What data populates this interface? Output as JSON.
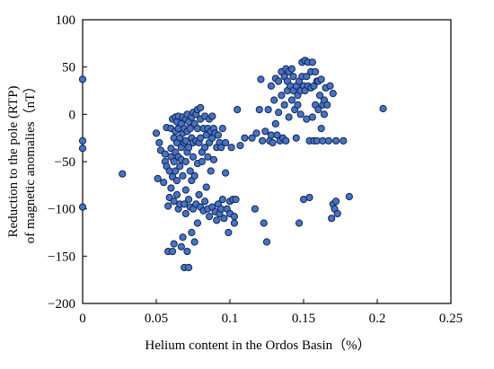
{
  "chart_data": {
    "type": "scatter",
    "xlabel": "Helium content in the Ordos Basin（%）",
    "ylabel_line1": "Reduction to the pole (RTP)",
    "ylabel_line2": "of magnetic anomalies（nT）",
    "xlim": [
      0,
      0.25
    ],
    "ylim": [
      -200,
      100
    ],
    "xticks": [
      0,
      0.05,
      0.1,
      0.15,
      0.2,
      0.25
    ],
    "xtick_labels": [
      "0",
      "0.05",
      "0.1",
      "0.15",
      "0.2",
      "0.25"
    ],
    "yticks": [
      100,
      50,
      0,
      -50,
      -100,
      -150,
      -200
    ],
    "ytick_labels": [
      "100",
      "50",
      "0",
      "−50",
      "−100",
      "−150",
      "−200"
    ],
    "grid": false,
    "marker_color": "#4a72c0",
    "marker_edge": "#0d2658",
    "points": [
      [
        0,
        37
      ],
      [
        0,
        -28
      ],
      [
        0,
        -36
      ],
      [
        0,
        -98
      ],
      [
        0.027,
        -63
      ],
      [
        0.05,
        -20
      ],
      [
        0.051,
        -68
      ],
      [
        0.052,
        -30
      ],
      [
        0.053,
        -38
      ],
      [
        0.055,
        -72
      ],
      [
        0.056,
        -42
      ],
      [
        0.056,
        -50
      ],
      [
        0.057,
        -14
      ],
      [
        0.057,
        -55
      ],
      [
        0.058,
        -97
      ],
      [
        0.058,
        -145
      ],
      [
        0.059,
        -60
      ],
      [
        0.059,
        -88
      ],
      [
        0.06,
        -15
      ],
      [
        0.06,
        -36
      ],
      [
        0.06,
        -45
      ],
      [
        0.06,
        -78
      ],
      [
        0.061,
        -5
      ],
      [
        0.061,
        -66
      ],
      [
        0.061,
        -145
      ],
      [
        0.062,
        -25
      ],
      [
        0.062,
        -50
      ],
      [
        0.062,
        -92
      ],
      [
        0.062,
        -137
      ],
      [
        0.063,
        -3
      ],
      [
        0.063,
        -18
      ],
      [
        0.063,
        -40
      ],
      [
        0.063,
        -60
      ],
      [
        0.064,
        -8
      ],
      [
        0.064,
        -30
      ],
      [
        0.064,
        -70
      ],
      [
        0.064,
        -85
      ],
      [
        0.065,
        -2
      ],
      [
        0.065,
        -15
      ],
      [
        0.065,
        -45
      ],
      [
        0.065,
        -100
      ],
      [
        0.066,
        -25
      ],
      [
        0.066,
        -55
      ],
      [
        0.066,
        -95
      ],
      [
        0.067,
        -10
      ],
      [
        0.067,
        -35
      ],
      [
        0.067,
        -48
      ],
      [
        0.067,
        -140
      ],
      [
        0.068,
        -3
      ],
      [
        0.068,
        -20
      ],
      [
        0.068,
        -65
      ],
      [
        0.068,
        -130
      ],
      [
        0.069,
        -15
      ],
      [
        0.069,
        -30
      ],
      [
        0.069,
        -95
      ],
      [
        0.069,
        -162
      ],
      [
        0.07,
        -5
      ],
      [
        0.07,
        -28
      ],
      [
        0.07,
        -50
      ],
      [
        0.07,
        -80
      ],
      [
        0.07,
        -105
      ],
      [
        0.071,
        0
      ],
      [
        0.071,
        -18
      ],
      [
        0.071,
        -40
      ],
      [
        0.071,
        -145
      ],
      [
        0.072,
        -8
      ],
      [
        0.072,
        -35
      ],
      [
        0.072,
        -90
      ],
      [
        0.072,
        -162
      ],
      [
        0.073,
        -15
      ],
      [
        0.073,
        -60
      ],
      [
        0.073,
        -98
      ],
      [
        0.074,
        -3
      ],
      [
        0.074,
        -25
      ],
      [
        0.074,
        -70
      ],
      [
        0.074,
        -125
      ],
      [
        0.075,
        2
      ],
      [
        0.075,
        -30
      ],
      [
        0.075,
        -45
      ],
      [
        0.075,
        -100
      ],
      [
        0.076,
        -10
      ],
      [
        0.076,
        -65
      ],
      [
        0.076,
        -135
      ],
      [
        0.077,
        0
      ],
      [
        0.077,
        -28
      ],
      [
        0.077,
        -95
      ],
      [
        0.078,
        5
      ],
      [
        0.078,
        -15
      ],
      [
        0.078,
        -52
      ],
      [
        0.078,
        -115
      ],
      [
        0.079,
        -30
      ],
      [
        0.079,
        -85
      ],
      [
        0.08,
        7
      ],
      [
        0.08,
        -5
      ],
      [
        0.08,
        -25
      ],
      [
        0.08,
        -98
      ],
      [
        0.081,
        -40
      ],
      [
        0.081,
        -50
      ],
      [
        0.082,
        -15
      ],
      [
        0.082,
        -102
      ],
      [
        0.083,
        -2
      ],
      [
        0.083,
        -35
      ],
      [
        0.083,
        -92
      ],
      [
        0.084,
        -22
      ],
      [
        0.084,
        -77
      ],
      [
        0.085,
        -15
      ],
      [
        0.085,
        -45
      ],
      [
        0.085,
        -100
      ],
      [
        0.086,
        -5
      ],
      [
        0.086,
        -30
      ],
      [
        0.086,
        -108
      ],
      [
        0.087,
        -18
      ],
      [
        0.087,
        -60
      ],
      [
        0.088,
        -2
      ],
      [
        0.088,
        -25
      ],
      [
        0.088,
        -98
      ],
      [
        0.089,
        -15
      ],
      [
        0.089,
        -48
      ],
      [
        0.09,
        -20
      ],
      [
        0.09,
        -103
      ],
      [
        0.091,
        -35
      ],
      [
        0.091,
        -112
      ],
      [
        0.092,
        -22
      ],
      [
        0.092,
        -95
      ],
      [
        0.093,
        -30
      ],
      [
        0.093,
        -105
      ],
      [
        0.094,
        -35
      ],
      [
        0.094,
        -100
      ],
      [
        0.095,
        -15
      ],
      [
        0.095,
        -90
      ],
      [
        0.096,
        -110
      ],
      [
        0.097,
        -30
      ],
      [
        0.097,
        -62
      ],
      [
        0.098,
        -100
      ],
      [
        0.099,
        -125
      ],
      [
        0.1,
        -92
      ],
      [
        0.1,
        -105
      ],
      [
        0.101,
        -35
      ],
      [
        0.102,
        -90
      ],
      [
        0.103,
        -108
      ],
      [
        0.103,
        -115
      ],
      [
        0.104,
        -90
      ],
      [
        0.105,
        5
      ],
      [
        0.107,
        -33
      ],
      [
        0.11,
        -25
      ],
      [
        0.115,
        -25
      ],
      [
        0.117,
        -100
      ],
      [
        0.118,
        -20
      ],
      [
        0.12,
        5
      ],
      [
        0.121,
        37
      ],
      [
        0.122,
        -28
      ],
      [
        0.123,
        -115
      ],
      [
        0.124,
        -18
      ],
      [
        0.125,
        -135
      ],
      [
        0.126,
        5
      ],
      [
        0.127,
        -28
      ],
      [
        0.128,
        30
      ],
      [
        0.128,
        -22
      ],
      [
        0.129,
        -30
      ],
      [
        0.13,
        15
      ],
      [
        0.131,
        38
      ],
      [
        0.131,
        -10
      ],
      [
        0.132,
        -22
      ],
      [
        0.133,
        35
      ],
      [
        0.133,
        2
      ],
      [
        0.134,
        -28
      ],
      [
        0.135,
        45
      ],
      [
        0.135,
        20
      ],
      [
        0.136,
        -25
      ],
      [
        0.137,
        40
      ],
      [
        0.137,
        10
      ],
      [
        0.138,
        48
      ],
      [
        0.138,
        -28
      ],
      [
        0.139,
        35
      ],
      [
        0.139,
        25
      ],
      [
        0.14,
        45
      ],
      [
        0.14,
        -3
      ],
      [
        0.141,
        30
      ],
      [
        0.142,
        48
      ],
      [
        0.142,
        15
      ],
      [
        0.143,
        40
      ],
      [
        0.143,
        25
      ],
      [
        0.144,
        5
      ],
      [
        0.145,
        30
      ],
      [
        0.145,
        -25
      ],
      [
        0.146,
        20
      ],
      [
        0.146,
        10
      ],
      [
        0.147,
        35
      ],
      [
        0.147,
        -115
      ],
      [
        0.148,
        25
      ],
      [
        0.148,
        0
      ],
      [
        0.149,
        55
      ],
      [
        0.149,
        40
      ],
      [
        0.15,
        30
      ],
      [
        0.15,
        -90
      ],
      [
        0.151,
        57
      ],
      [
        0.151,
        25
      ],
      [
        0.152,
        40
      ],
      [
        0.152,
        -5
      ],
      [
        0.153,
        55
      ],
      [
        0.153,
        30
      ],
      [
        0.154,
        -28
      ],
      [
        0.154,
        -88
      ],
      [
        0.155,
        45
      ],
      [
        0.155,
        28
      ],
      [
        0.156,
        55
      ],
      [
        0.156,
        -3
      ],
      [
        0.157,
        30
      ],
      [
        0.157,
        -28
      ],
      [
        0.158,
        45
      ],
      [
        0.158,
        10
      ],
      [
        0.159,
        35
      ],
      [
        0.159,
        -28
      ],
      [
        0.16,
        35
      ],
      [
        0.16,
        5
      ],
      [
        0.161,
        20
      ],
      [
        0.162,
        37
      ],
      [
        0.162,
        -15
      ],
      [
        0.163,
        10
      ],
      [
        0.163,
        -28
      ],
      [
        0.164,
        15
      ],
      [
        0.164,
        0
      ],
      [
        0.165,
        28
      ],
      [
        0.166,
        10
      ],
      [
        0.167,
        -28
      ],
      [
        0.168,
        30
      ],
      [
        0.169,
        -110
      ],
      [
        0.17,
        22
      ],
      [
        0.17,
        -95
      ],
      [
        0.171,
        -100
      ],
      [
        0.172,
        -28
      ],
      [
        0.172,
        -92
      ],
      [
        0.173,
        -105
      ],
      [
        0.177,
        -28
      ],
      [
        0.181,
        -87
      ],
      [
        0.204,
        6
      ]
    ]
  }
}
